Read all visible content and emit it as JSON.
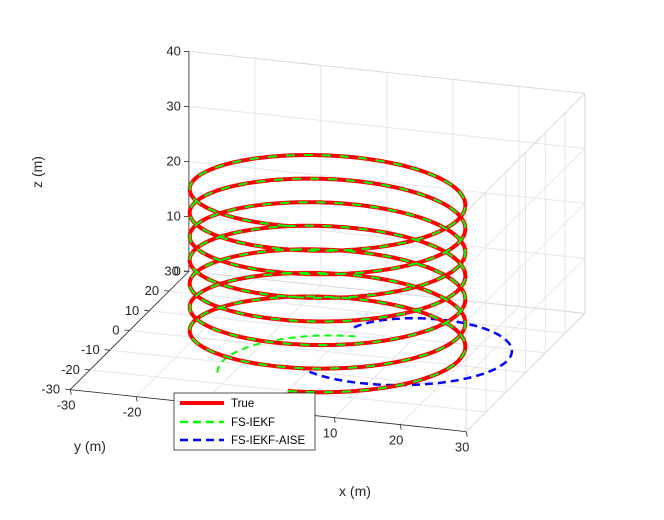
{
  "chart_data": {
    "type": "line",
    "projection": "3d",
    "title": "",
    "xlabel": "x (m)",
    "ylabel": "y (m)",
    "zlabel": "z (m)",
    "xlim": [
      -30,
      30
    ],
    "ylim": [
      -30,
      30
    ],
    "zlim": [
      0,
      40
    ],
    "xticks": [
      "-30",
      "-20",
      "-10",
      "0",
      "10",
      "20",
      "30"
    ],
    "yticks": [
      "-30",
      "-20",
      "-10",
      "0",
      "10",
      "20",
      "30"
    ],
    "zticks": [
      "0",
      "10",
      "20",
      "30",
      "40"
    ],
    "grid": true,
    "legend_position": "bottom-left",
    "trajectory": {
      "shape": "helix",
      "radius": 20,
      "center": [
        0,
        0
      ],
      "turns": 7,
      "z_range": [
        0,
        30
      ]
    },
    "series": [
      {
        "name": "True",
        "color": "#ff0000",
        "style": "solid"
      },
      {
        "name": "FS-IEKF",
        "color": "#00ff00",
        "style": "dashed"
      },
      {
        "name": "FS-IEKF-AISE",
        "color": "#0000ff",
        "style": "dashed"
      }
    ]
  }
}
